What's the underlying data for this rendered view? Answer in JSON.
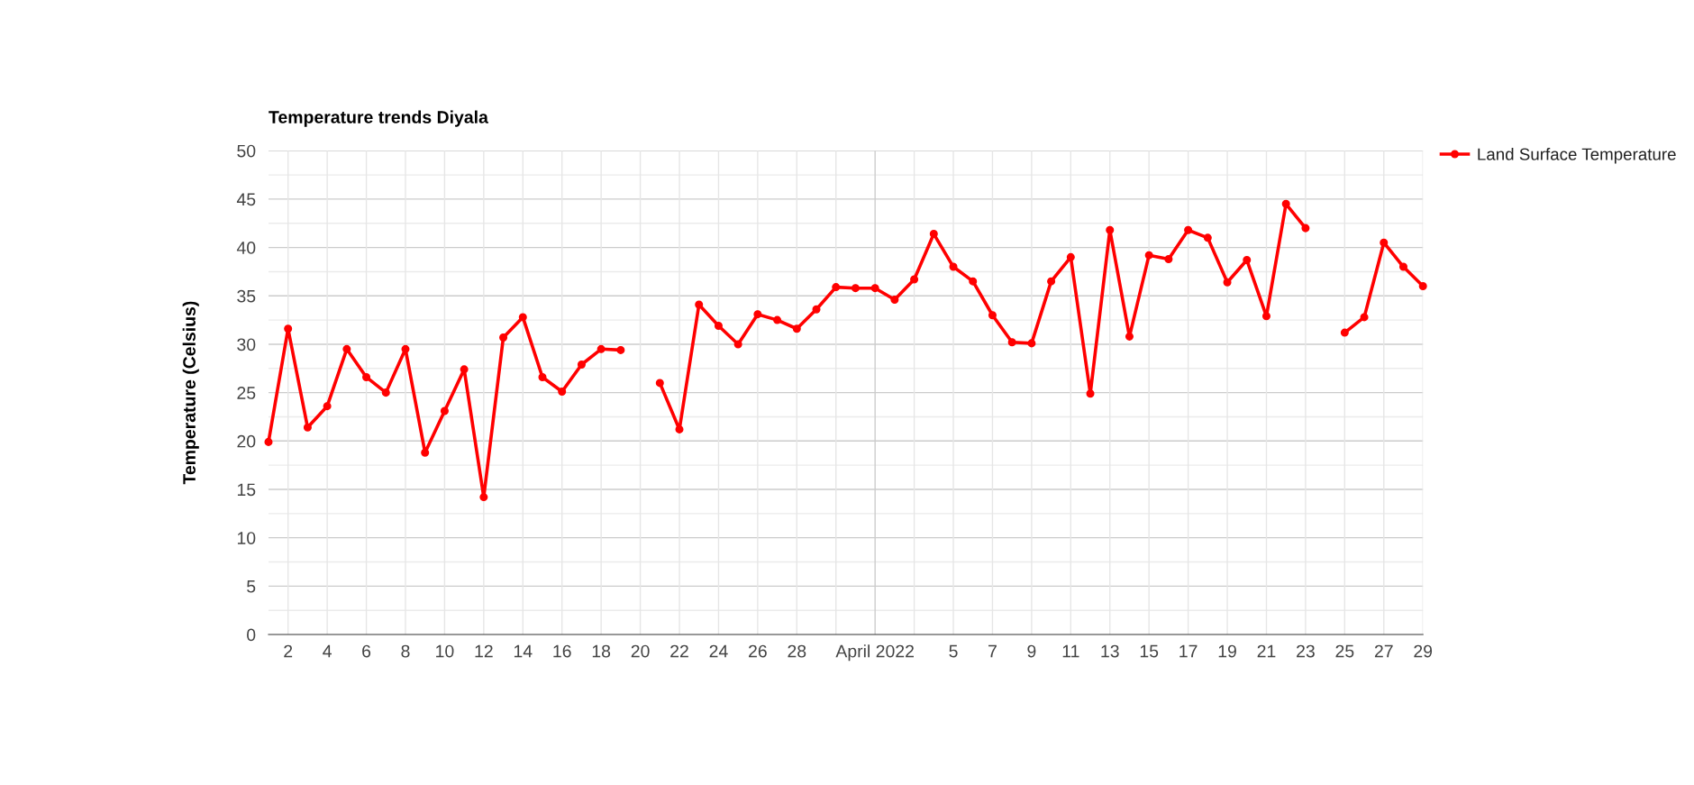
{
  "chart_data": {
    "type": "line",
    "title": "Temperature trends Diyala",
    "ylabel": "Temperature (Celsius)",
    "x": [
      "2022-03-01",
      "2022-03-02",
      "2022-03-03",
      "2022-03-04",
      "2022-03-05",
      "2022-03-06",
      "2022-03-07",
      "2022-03-08",
      "2022-03-09",
      "2022-03-10",
      "2022-03-11",
      "2022-03-12",
      "2022-03-13",
      "2022-03-14",
      "2022-03-15",
      "2022-03-16",
      "2022-03-17",
      "2022-03-18",
      "2022-03-19",
      "2022-03-20",
      "2022-03-21",
      "2022-03-22",
      "2022-03-23",
      "2022-03-24",
      "2022-03-25",
      "2022-03-26",
      "2022-03-27",
      "2022-03-28",
      "2022-03-29",
      "2022-03-30",
      "2022-03-31",
      "2022-04-01",
      "2022-04-02",
      "2022-04-03",
      "2022-04-04",
      "2022-04-05",
      "2022-04-06",
      "2022-04-07",
      "2022-04-08",
      "2022-04-09",
      "2022-04-10",
      "2022-04-11",
      "2022-04-12",
      "2022-04-13",
      "2022-04-14",
      "2022-04-15",
      "2022-04-16",
      "2022-04-17",
      "2022-04-18",
      "2022-04-19",
      "2022-04-20",
      "2022-04-21",
      "2022-04-22",
      "2022-04-23",
      "2022-04-24",
      "2022-04-25",
      "2022-04-26",
      "2022-04-27",
      "2022-04-28",
      "2022-04-29"
    ],
    "series": [
      {
        "name": "Land Surface Temperature",
        "color": "#ff0000",
        "values": [
          19.9,
          31.6,
          21.4,
          23.6,
          29.5,
          26.6,
          25.0,
          29.5,
          18.8,
          23.1,
          27.4,
          14.2,
          30.7,
          32.8,
          26.6,
          25.1,
          27.9,
          29.5,
          29.4,
          null,
          26.0,
          21.2,
          34.1,
          31.9,
          30.0,
          33.1,
          32.5,
          31.6,
          33.6,
          35.9,
          35.8,
          35.8,
          34.6,
          36.7,
          41.4,
          38.0,
          36.5,
          33.0,
          30.2,
          30.1,
          36.5,
          39.0,
          24.9,
          41.8,
          30.8,
          39.2,
          38.8,
          41.8,
          41.0,
          36.4,
          38.7,
          32.9,
          44.5,
          42.0,
          null,
          31.2,
          32.8,
          40.5,
          38.0,
          36.0
        ]
      }
    ],
    "xlim": [
      "2022-03-01",
      "2022-04-29"
    ],
    "xticks": [
      {
        "value": "2022-03-02",
        "label": "2"
      },
      {
        "value": "2022-03-04",
        "label": "4"
      },
      {
        "value": "2022-03-06",
        "label": "6"
      },
      {
        "value": "2022-03-08",
        "label": "8"
      },
      {
        "value": "2022-03-10",
        "label": "10"
      },
      {
        "value": "2022-03-12",
        "label": "12"
      },
      {
        "value": "2022-03-14",
        "label": "14"
      },
      {
        "value": "2022-03-16",
        "label": "16"
      },
      {
        "value": "2022-03-18",
        "label": "18"
      },
      {
        "value": "2022-03-20",
        "label": "20"
      },
      {
        "value": "2022-03-22",
        "label": "22"
      },
      {
        "value": "2022-03-24",
        "label": "24"
      },
      {
        "value": "2022-03-26",
        "label": "26"
      },
      {
        "value": "2022-03-28",
        "label": "28"
      },
      {
        "value": "2022-03-30",
        "label": null
      },
      {
        "value": "2022-04-01",
        "label": "April 2022"
      },
      {
        "value": "2022-04-03",
        "label": null
      },
      {
        "value": "2022-04-05",
        "label": "5"
      },
      {
        "value": "2022-04-07",
        "label": "7"
      },
      {
        "value": "2022-04-09",
        "label": "9"
      },
      {
        "value": "2022-04-11",
        "label": "11"
      },
      {
        "value": "2022-04-13",
        "label": "13"
      },
      {
        "value": "2022-04-15",
        "label": "15"
      },
      {
        "value": "2022-04-17",
        "label": "17"
      },
      {
        "value": "2022-04-19",
        "label": "19"
      },
      {
        "value": "2022-04-21",
        "label": "21"
      },
      {
        "value": "2022-04-23",
        "label": "23"
      },
      {
        "value": "2022-04-25",
        "label": "25"
      },
      {
        "value": "2022-04-27",
        "label": "27"
      },
      {
        "value": "2022-04-29",
        "label": "29"
      }
    ],
    "ylim": [
      0,
      50
    ],
    "yticks": [
      0,
      {
        "value": 2.5,
        "label": null
      },
      5,
      {
        "value": 7.5,
        "label": null
      },
      10,
      {
        "value": 12.5,
        "label": null
      },
      15,
      {
        "value": 17.5,
        "label": null
      },
      20,
      {
        "value": 22.5,
        "label": null
      },
      25,
      {
        "value": 27.5,
        "label": null
      },
      30,
      {
        "value": 32.5,
        "label": null
      },
      35,
      {
        "value": 37.5,
        "label": null
      },
      40,
      {
        "value": 42.5,
        "label": null
      },
      45,
      {
        "value": 47.5,
        "label": null
      },
      50
    ],
    "grid": true,
    "legend": "top right",
    "marker": "circle",
    "line_style": "solid"
  }
}
